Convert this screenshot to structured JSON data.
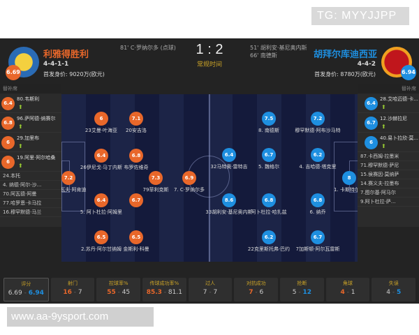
{
  "watermark_top": "TG: MYYJJPP",
  "watermark_bottom": "www.aa-9ysport.com",
  "colors": {
    "home": "#e8672a",
    "away": "#1e8fe0",
    "label": "#c9a227"
  },
  "home": {
    "name": "利雅得胜利",
    "formation": "4-4-1-1",
    "value": "首发身价: 9020万(欧元)",
    "rating": "6.69",
    "events": [
      "81' C·罗纳尔多 (点球)"
    ]
  },
  "away": {
    "name": "胡拜尔库迪西亚",
    "formation": "4-4-2",
    "value": "首发身价: 8780万(欧元)",
    "rating": "6.94",
    "events": [
      "51' 胡利安·基尼奥内斯",
      "66' 南德斯"
    ]
  },
  "score": "1 : 2",
  "status": "常规时间",
  "bench_title": "替补席",
  "home_bench": {
    "subs": [
      {
        "r": "6.4",
        "n": "80.韦斯利"
      },
      {
        "r": "6.8",
        "n": "96.萨阿德·纳赛尔"
      },
      {
        "r": "6",
        "n": "29.加里布"
      },
      {
        "r": "6",
        "n": "19.阿里·阿尔哈桑"
      }
    ],
    "others": [
      "24.本托",
      "4. 纳德·阿尔-沙...",
      "70.阿瓦德·阿曼",
      "77.哈罗恩·卡马拉",
      "16.穆罕默德·马兰"
    ]
  },
  "away_bench": {
    "subs": [
      {
        "r": "6.4",
        "n": "28.艾哈迈德·卡..."
      },
      {
        "r": "6.7",
        "n": "12.沙赫拉尼"
      },
      {
        "r": "6",
        "n": "40.易卜拉欣·莫..."
      }
    ],
    "others": [
      "87.卡西姆·拉墨米",
      "71.穆罕默德·萨尼",
      "15.侯赛因·莫纳萨",
      "14.赛义夫·拉墨布",
      "7.图尔基·阿马尔",
      "9.阿卜杜拉·萨..."
    ]
  },
  "home_players": [
    {
      "r": "7.2",
      "n": "1.纳瓦夫·阿肯迪"
    },
    {
      "r": "6",
      "n": "23艾曼·叶海亚"
    },
    {
      "r": "7.1",
      "n": "20安吉洛"
    },
    {
      "r": "6.4",
      "n": "26伊尼戈·马丁内斯"
    },
    {
      "r": "6.8",
      "n": "布罗佐维奇"
    },
    {
      "r": "7.3",
      "n": "79菲利克斯"
    },
    {
      "r": "6.9",
      "n": "7. C·罗纳尔多"
    },
    {
      "r": "6.4",
      "n": "5. 阿卜杜拉·阿姆里"
    },
    {
      "r": "6.7",
      "n": ""
    },
    {
      "r": "6.5",
      "n": "2.苏丹·阿尔甘纳姆"
    },
    {
      "r": "6.5",
      "n": "金斯利·科曼"
    }
  ],
  "away_players": [
    {
      "r": "8",
      "n": "1. 卡斯特尔斯"
    },
    {
      "r": "7.5",
      "n": "8. 南德斯"
    },
    {
      "r": "7.2",
      "n": "穆罕默德·阿布沙马特"
    },
    {
      "r": "6.4",
      "n": "32马特奥·雷特吉"
    },
    {
      "r": "6.7",
      "n": "5. 魏格尔"
    },
    {
      "r": "6.2",
      "n": "4. 吉哈德·塔克里"
    },
    {
      "r": "8.6",
      "n": "33胡利安·基尼奥内斯"
    },
    {
      "r": "6.8",
      "n": "阿卜杜拉·哈扎兹"
    },
    {
      "r": "6.8",
      "n": "6. 纳乔"
    },
    {
      "r": "6.2",
      "n": "22克里斯托弗·巴约"
    },
    {
      "r": "6.7",
      "n": "7加斯顿·阿尔瓦雷斯"
    }
  ],
  "stats": [
    {
      "label": "评分",
      "home": "6.69",
      "away": "6.94",
      "lead": "away"
    },
    {
      "label": "射门",
      "home": "16",
      "away": "7",
      "lead": "home"
    },
    {
      "label": "控球率%",
      "home": "55",
      "away": "45",
      "lead": "home"
    },
    {
      "label": "传球成功率%",
      "home": "85.3",
      "away": "81.1",
      "lead": "home"
    },
    {
      "label": "过人",
      "home": "7",
      "away": "7",
      "lead": ""
    },
    {
      "label": "对抗成功",
      "home": "7",
      "away": "6",
      "lead": "home"
    },
    {
      "label": "抢断",
      "home": "5",
      "away": "12",
      "lead": "away"
    },
    {
      "label": "角球",
      "home": "4",
      "away": "1",
      "lead": "home"
    },
    {
      "label": "失误",
      "home": "4",
      "away": "5",
      "lead": "away"
    }
  ]
}
